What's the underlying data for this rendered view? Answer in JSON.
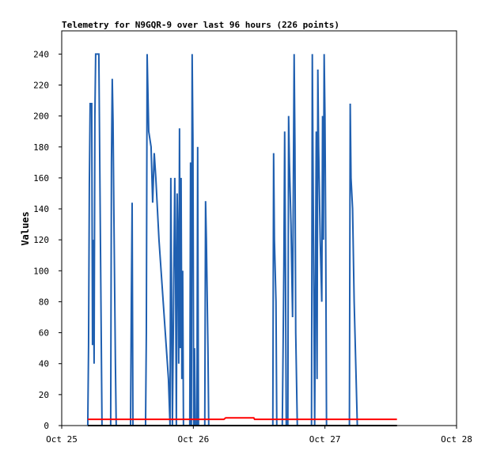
{
  "chart_data": {
    "type": "line",
    "title": "Telemetry for N9GQR-9 over last 96 hours (226 points)",
    "y_label": "Values",
    "xlim": [
      0,
      3
    ],
    "xticks": [
      {
        "value": 0,
        "label": "Oct 25"
      },
      {
        "value": 1,
        "label": "Oct 26"
      },
      {
        "value": 2,
        "label": "Oct 27"
      },
      {
        "value": 3,
        "label": "Oct 28"
      }
    ],
    "ylim": [
      0,
      255
    ],
    "yticks": [
      0,
      20,
      40,
      60,
      80,
      100,
      120,
      140,
      160,
      180,
      200,
      220,
      240
    ],
    "grid": false,
    "series": [
      {
        "color": "#1f5fb0",
        "x": [
          0.198,
          0.204,
          0.21,
          0.216,
          0.228,
          0.234,
          0.24,
          0.246,
          0.252,
          0.258,
          0.282,
          0.306,
          0.372,
          0.378,
          0.384,
          0.39,
          0.396,
          0.408,
          0.414,
          0.523,
          0.529,
          0.535,
          0.541,
          0.637,
          0.643,
          0.649,
          0.661,
          0.679,
          0.691,
          0.703,
          0.715,
          0.739,
          0.763,
          0.787,
          0.811,
          0.823,
          0.829,
          0.835,
          0.841,
          0.859,
          0.865,
          0.871,
          0.877,
          0.883,
          0.889,
          0.895,
          0.901,
          0.907,
          0.913,
          0.919,
          0.925,
          0.973,
          0.979,
          0.985,
          0.991,
          0.997,
          1.003,
          1.009,
          1.015,
          1.027,
          1.033,
          1.039,
          1.087,
          1.093,
          1.099,
          1.111,
          1.117,
          1.604,
          1.61,
          1.616,
          1.628,
          1.634,
          1.676,
          1.682,
          1.688,
          1.694,
          1.7,
          1.706,
          1.718,
          1.724,
          1.73,
          1.742,
          1.754,
          1.766,
          1.772,
          1.778,
          1.79,
          1.898,
          1.904,
          1.91,
          1.922,
          1.934,
          1.94,
          1.946,
          1.952,
          1.964,
          1.976,
          1.982,
          1.988,
          1.994,
          2.0,
          2.006,
          2.012,
          2.186,
          2.192,
          2.198,
          2.21,
          2.222,
          2.234,
          2.246
        ],
        "values": [
          0,
          52,
          156,
          208,
          208,
          52,
          120,
          40,
          200,
          240,
          240,
          0,
          0,
          170,
          224,
          196,
          140,
          40,
          0,
          0,
          80,
          144,
          0,
          0,
          60,
          240,
          190,
          180,
          144,
          176,
          160,
          120,
          90,
          60,
          30,
          0,
          160,
          80,
          0,
          160,
          100,
          0,
          150,
          120,
          40,
          192,
          50,
          160,
          30,
          100,
          0,
          0,
          170,
          0,
          240,
          184,
          0,
          50,
          0,
          0,
          180,
          0,
          0,
          145,
          120,
          50,
          0,
          0,
          176,
          120,
          80,
          0,
          0,
          50,
          104,
          190,
          104,
          0,
          0,
          200,
          170,
          130,
          70,
          240,
          180,
          60,
          0,
          0,
          240,
          160,
          0,
          190,
          30,
          230,
          180,
          120,
          80,
          200,
          120,
          240,
          200,
          120,
          0,
          0,
          208,
          160,
          140,
          80,
          40,
          0
        ]
      },
      {
        "color": "#ff0000",
        "x": [
          0.198,
          1.232,
          1.246,
          1.459,
          1.466,
          2.547
        ],
        "values": [
          4,
          4,
          5,
          5,
          4,
          4
        ]
      },
      {
        "color": "#000000",
        "x": [
          0.198,
          2.547
        ],
        "values": [
          0,
          0
        ]
      }
    ]
  }
}
